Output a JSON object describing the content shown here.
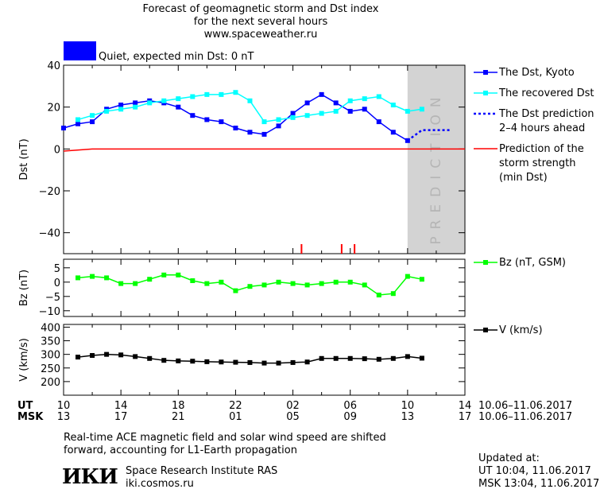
{
  "header": {
    "title_line1": "Forecast of geomagnetic storm and Dst index",
    "title_line2": "for the next several hours",
    "website": "www.spaceweather.ru",
    "status_text": "Quiet, expected min Dst: 0 nT",
    "status_color": "#0000ff"
  },
  "prediction_label": "PREDICTION",
  "time_axis": {
    "ut_label": "UT",
    "msk_label": "MSK",
    "ut_ticks": [
      "10",
      "14",
      "18",
      "22",
      "02",
      "06",
      "10",
      "14"
    ],
    "msk_ticks": [
      "13",
      "17",
      "21",
      "01",
      "05",
      "09",
      "13",
      "17"
    ],
    "ut_range": "10.06–11.06.2017",
    "msk_range": "10.06–11.06.2017"
  },
  "footer": {
    "note_line1": "Real-time ACE magnetic field and solar wind speed are shifted",
    "note_line2": "forward, accounting for L1-Earth propagation",
    "logo_text": "ИКИ",
    "institute": "Space Research Institute RAS",
    "institute_url": "iki.cosmos.ru",
    "updated_label": "Updated at:",
    "updated_ut": "UT   10:04, 11.06.2017",
    "updated_msk": "MSK 13:04, 11.06.2017"
  },
  "chart_data": [
    {
      "type": "line",
      "ylabel": "Dst (nT)",
      "ylim": [
        -50,
        40
      ],
      "yticks": [
        40,
        20,
        0,
        -20,
        -40
      ],
      "x_unit": "hours since 10:00 UT 10.06.2017",
      "xlim": [
        0,
        28
      ],
      "prediction_region": [
        24,
        28
      ],
      "legend": [
        {
          "label": "The Dst, Kyoto",
          "color": "#0000ff"
        },
        {
          "label": "The recovered Dst",
          "color": "#00ffff"
        },
        {
          "label": "The Dst prediction\n2–4 hours ahead",
          "color": "#0000ff"
        },
        {
          "label": "Prediction of the\nstorm strength\n(min Dst)",
          "color": "#ff0000"
        }
      ],
      "series": [
        {
          "name": "The Dst, Kyoto",
          "color": "#0000ff",
          "x": [
            0,
            1,
            2,
            3,
            4,
            5,
            6,
            7,
            8,
            9,
            10,
            11,
            12,
            13,
            14,
            15,
            16,
            17,
            18,
            19,
            20,
            21,
            22,
            23,
            24
          ],
          "y": [
            10,
            12,
            13,
            19,
            21,
            22,
            23,
            22,
            20,
            16,
            14,
            13,
            10,
            8,
            7,
            11,
            17,
            22,
            26,
            22,
            18,
            19,
            13,
            8,
            4
          ]
        },
        {
          "name": "The recovered Dst",
          "color": "#00ffff",
          "x": [
            1,
            2,
            3,
            4,
            5,
            6,
            7,
            8,
            9,
            10,
            11,
            12,
            13,
            14,
            15,
            16,
            17,
            18,
            19,
            20,
            21,
            22,
            23,
            24,
            25
          ],
          "y": [
            14,
            16,
            18,
            19,
            20,
            22,
            23,
            24,
            25,
            26,
            26,
            27,
            23,
            13,
            14,
            15,
            16,
            17,
            18,
            23,
            24,
            25,
            21,
            18,
            19
          ]
        },
        {
          "name": "The Dst prediction 2–4 hours ahead",
          "color": "#0000ff",
          "x": [
            24,
            25,
            26,
            27
          ],
          "y": [
            4,
            9,
            9,
            9
          ]
        },
        {
          "name": "Prediction of the storm strength (min Dst)",
          "color": "#ff0000",
          "x": [
            0,
            2,
            28
          ],
          "y": [
            -1,
            0,
            0
          ]
        }
      ],
      "markers": {
        "color": "#ff0000",
        "x": [
          16.6,
          19.4,
          20.3
        ]
      }
    },
    {
      "type": "line",
      "ylabel": "Bz (nT)",
      "ylim": [
        -12,
        8
      ],
      "yticks": [
        5,
        0,
        -5,
        -10
      ],
      "legend": [
        {
          "label": "Bz (nT, GSM)",
          "color": "#00ff00"
        }
      ],
      "series": [
        {
          "name": "Bz (nT, GSM)",
          "color": "#00ff00",
          "x": [
            1,
            2,
            3,
            4,
            5,
            6,
            7,
            8,
            9,
            10,
            11,
            12,
            13,
            14,
            15,
            16,
            17,
            18,
            19,
            20,
            21,
            22,
            23,
            24,
            25,
            26
          ],
          "y": [
            1.5,
            2,
            1.5,
            -0.5,
            -0.5,
            1,
            2.5,
            2.5,
            0.5,
            -0.5,
            0,
            -3,
            -1.5,
            -1,
            0,
            -0.5,
            -1,
            -0.5,
            0,
            0,
            -1,
            -4.5,
            -4,
            2,
            1,
            null
          ]
        }
      ]
    },
    {
      "type": "line",
      "ylabel": "V (km/s)",
      "ylim": [
        150,
        410
      ],
      "yticks": [
        400,
        350,
        300,
        250,
        200
      ],
      "legend": [
        {
          "label": "V (km/s)",
          "color": "#000000"
        }
      ],
      "series": [
        {
          "name": "V (km/s)",
          "color": "#000000",
          "x": [
            1,
            2,
            3,
            4,
            5,
            6,
            7,
            8,
            9,
            10,
            11,
            12,
            13,
            14,
            15,
            16,
            17,
            18,
            19,
            20,
            21,
            22,
            23,
            24,
            25
          ],
          "y": [
            290,
            296,
            300,
            298,
            292,
            285,
            278,
            276,
            275,
            273,
            272,
            271,
            270,
            268,
            268,
            270,
            272,
            285,
            285,
            285,
            284,
            282,
            285,
            292,
            286
          ]
        }
      ]
    }
  ]
}
